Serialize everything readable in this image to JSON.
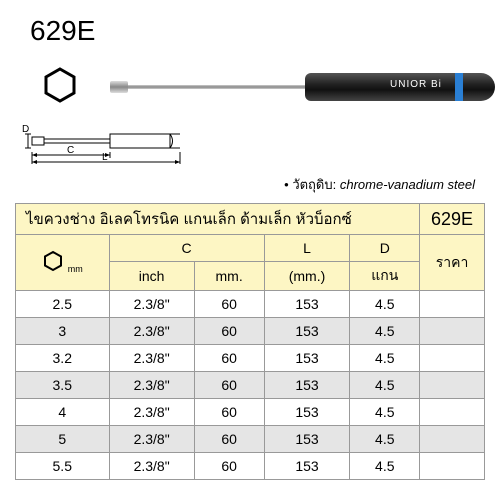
{
  "model": "629E",
  "brand": "UNIOR",
  "brand_suffix": "Bi",
  "material_label": "• วัตถุดิบ:",
  "material_value": "chrome-vanadium steel",
  "diagram_labels": {
    "D": "D",
    "C": "C",
    "L": "L"
  },
  "table": {
    "title": "ไขควงช่าง อิเลคโทรนิค แกนเล็ก ด้ามเล็ก หัวบ็อกซ์",
    "code": "629E",
    "mm_unit": "mm",
    "headers": {
      "C": "C",
      "L": "L",
      "D": "D",
      "price": "ราคา",
      "inch": "inch",
      "mm": "mm.",
      "L_unit": "(mm.)",
      "D_label": "แกน"
    },
    "rows": [
      {
        "size": "2.5",
        "c_inch": "2.3/8\"",
        "c_mm": "60",
        "L": "153",
        "D": "4.5",
        "price": ""
      },
      {
        "size": "3",
        "c_inch": "2.3/8\"",
        "c_mm": "60",
        "L": "153",
        "D": "4.5",
        "price": ""
      },
      {
        "size": "3.2",
        "c_inch": "2.3/8\"",
        "c_mm": "60",
        "L": "153",
        "D": "4.5",
        "price": ""
      },
      {
        "size": "3.5",
        "c_inch": "2.3/8\"",
        "c_mm": "60",
        "L": "153",
        "D": "4.5",
        "price": ""
      },
      {
        "size": "4",
        "c_inch": "2.3/8\"",
        "c_mm": "60",
        "L": "153",
        "D": "4.5",
        "price": ""
      },
      {
        "size": "5",
        "c_inch": "2.3/8\"",
        "c_mm": "60",
        "L": "153",
        "D": "4.5",
        "price": ""
      },
      {
        "size": "5.5",
        "c_inch": "2.3/8\"",
        "c_mm": "60",
        "L": "153",
        "D": "4.5",
        "price": ""
      }
    ]
  },
  "colors": {
    "header_bg": "#fdf6c4",
    "alt_row_bg": "#e5e5e5",
    "border": "#999999",
    "ring": "#2a7fd4"
  }
}
